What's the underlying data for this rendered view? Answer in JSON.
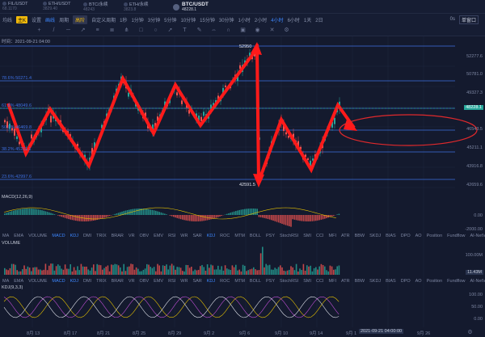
{
  "ticker_strip": [
    {
      "pair": "FIL/USDT",
      "price": "68.1170"
    },
    {
      "pair": "ETH/USDT",
      "price": "3829.40"
    },
    {
      "pair": "BTC/永续",
      "price": "48243"
    },
    {
      "pair": "ETH/永续",
      "price": "3823.8"
    }
  ],
  "main_ticker": {
    "pair": "BTC/USDT",
    "price": "48228.1"
  },
  "toolbar": {
    "items": [
      "均线",
      "高级",
      "设置",
      "画线",
      "周期",
      "高阶",
      "自定义周期"
    ],
    "main_label": "主K",
    "active": "画线",
    "hot": "高阶",
    "intervals": [
      "1秒",
      "1分",
      "1分钟",
      "3分钟",
      "5分钟",
      "10分钟",
      "15分钟",
      "30分钟",
      "1小时",
      "2小时",
      "4小时",
      "6小时",
      "1天",
      "2日"
    ],
    "active_interval": "4小时",
    "right": [
      "0s",
      "单窗口"
    ]
  },
  "header_time": "时间：2021-09-21 04:00",
  "price_axis": [
    "52277.6",
    "50781.0",
    "49327.3",
    "46543.5",
    "45211.1",
    "43916.8",
    "42659.6"
  ],
  "current_price_tag": "48228.1",
  "levels": [
    {
      "label": "78.6% 50271.4"
    },
    {
      "label": "61.8% 48049.6"
    },
    {
      "label": "50.0% 46469.8"
    },
    {
      "label": "38.2% 45211.1"
    },
    {
      "label": "23.6% 42997.6"
    }
  ],
  "annotations": {
    "high": "52950",
    "low": "42591.5"
  },
  "macd": {
    "label": "MACD(12,26,9)",
    "axis": [
      "0.00",
      "-2000.00"
    ]
  },
  "volume": {
    "label": "VOLUME",
    "axis": [
      "100.00M",
      "11.43M"
    ]
  },
  "kdj": {
    "label": "KDJ(9,3,3)",
    "axis": [
      "100.00",
      "50.00",
      "0.00"
    ]
  },
  "indicator_tabs": [
    "MA",
    "EMA",
    "VOLUME",
    "MACD",
    "KDJ",
    "DMI",
    "TRIX",
    "BRAR",
    "VR",
    "OBV",
    "EMV",
    "RSI",
    "WR",
    "SAR",
    "KDJ",
    "ROC",
    "MTM",
    "BOLL",
    "PSY",
    "StochRSI",
    "SMI",
    "CCI",
    "MFI",
    "ATR",
    "BBW",
    "SKDJ",
    "BIAS",
    "DPO",
    "AO",
    "Position",
    "Fundflow",
    "AI-NetVOL",
    "LSUR"
  ],
  "active_indicators": [
    "MACD",
    "KDJ"
  ],
  "x_axis": [
    "8月 13",
    "8月 17",
    "8月 21",
    "8月 25",
    "8月 29",
    "9月 2",
    "9月 6",
    "9月 10",
    "9月 14",
    "9月 1",
    "9月 26"
  ],
  "crosshair_time": "2021-09-21 04:00:00",
  "colors": {
    "up": "#26a69a",
    "down": "#ef5350",
    "arrow": "#ff1a1a",
    "level": "#3d6fe0"
  }
}
